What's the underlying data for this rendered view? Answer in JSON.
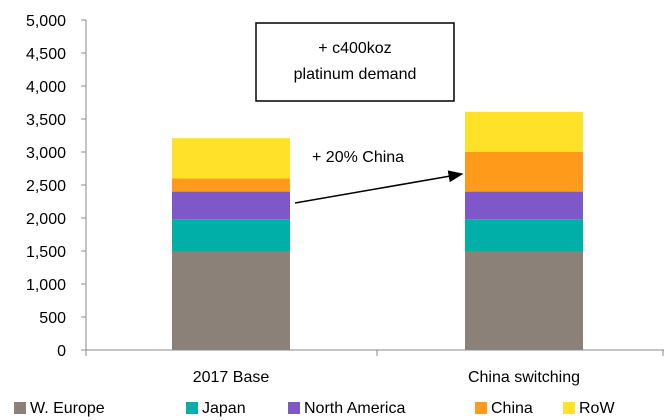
{
  "chart_data": {
    "type": "bar",
    "stacked": true,
    "title": "",
    "xlabel": "",
    "ylabel": "",
    "categories": [
      "2017 Base",
      "China switching"
    ],
    "ylim": [
      0,
      5000
    ],
    "yticks": [
      0,
      500,
      1000,
      1500,
      2000,
      2500,
      3000,
      3500,
      4000,
      4500,
      5000
    ],
    "ytick_labels": [
      "0",
      "500",
      "1,000",
      "1,500",
      "2,000",
      "2,500",
      "3,000",
      "3,500",
      "4,000",
      "4,500",
      "5,000"
    ],
    "grid": false,
    "legend_position": "bottom",
    "series": [
      {
        "name": "W. Europe",
        "color": "#8c8178",
        "values": [
          1500,
          1500
        ]
      },
      {
        "name": "Japan",
        "color": "#00b0a8",
        "values": [
          480,
          480
        ]
      },
      {
        "name": "North America",
        "color": "#7e57c8",
        "values": [
          420,
          420
        ]
      },
      {
        "name": "China",
        "color": "#ff9a1a",
        "values": [
          200,
          600
        ]
      },
      {
        "name": "RoW",
        "color": "#ffe12a",
        "values": [
          610,
          610
        ]
      }
    ],
    "annotations": {
      "box_text_line1": "+ c400koz",
      "box_text_line2": "platinum demand",
      "arrow_text": "+ 20% China"
    }
  }
}
